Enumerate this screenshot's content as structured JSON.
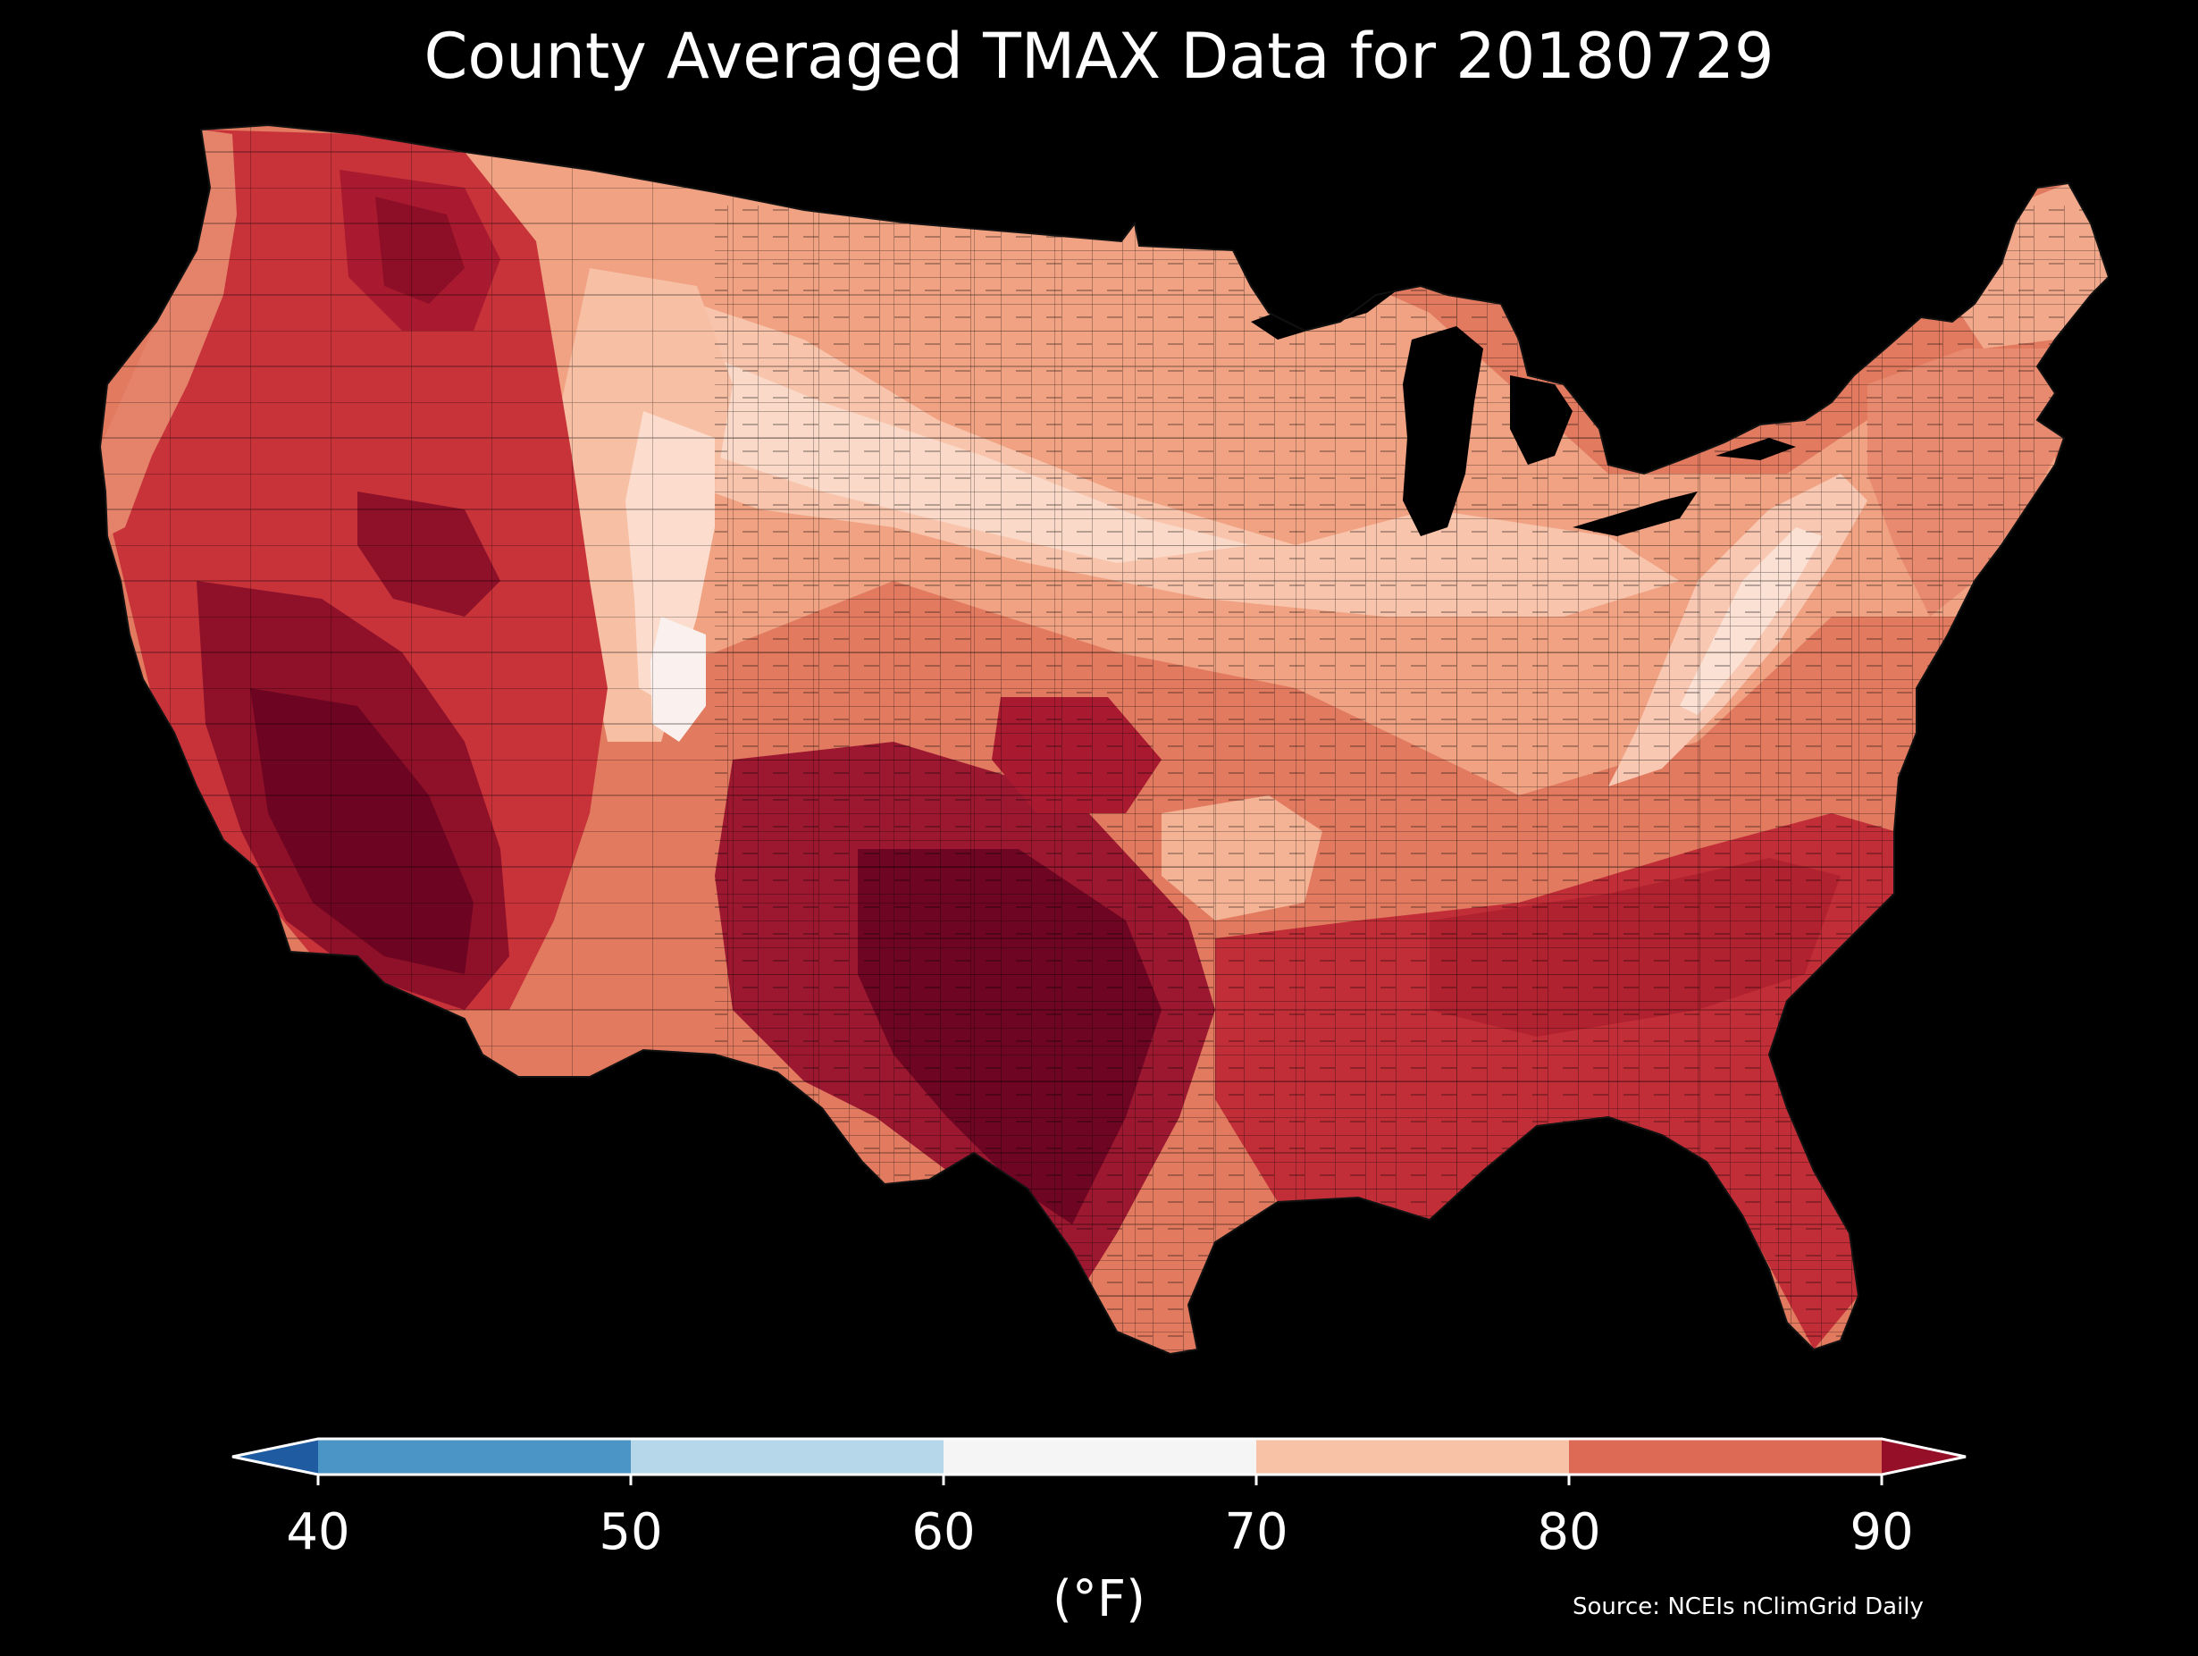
{
  "title": "County Averaged TMAX Data for 20180729",
  "source": "Source: NCEIs nClimGrid Daily",
  "colorbar": {
    "label": "(°F)",
    "ticks": [
      "40",
      "50",
      "60",
      "70",
      "80",
      "90"
    ],
    "bins": [
      {
        "range": "<40",
        "color": "#1e5ba0"
      },
      {
        "range": "40-50",
        "color": "#4b95c6"
      },
      {
        "range": "50-60",
        "color": "#b6d7e9"
      },
      {
        "range": "60-70",
        "color": "#f5f5f5"
      },
      {
        "range": "70-80",
        "color": "#f7c2a6"
      },
      {
        "range": "80-90",
        "color": "#dc6a55"
      },
      {
        "range": ">90",
        "color": "#960f28"
      }
    ]
  },
  "map": {
    "region": "Contiguous United States, county level",
    "colors": {
      "hottest": "#6a0020",
      "very_hot": "#a3152b",
      "hot": "#c83035",
      "warm": "#e0705a",
      "mild": "#f2a386",
      "cool": "#fbd3c0",
      "coolest": "#faf2ee",
      "water": "#000000"
    }
  }
}
